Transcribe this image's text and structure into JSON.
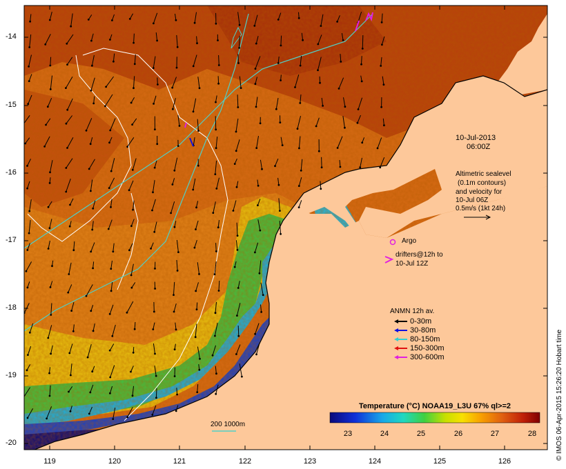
{
  "map": {
    "x_ticks": [
      "119",
      "120",
      "121",
      "122",
      "123",
      "124",
      "125",
      "126"
    ],
    "x_tick_values": [
      119,
      120,
      121,
      122,
      123,
      124,
      125,
      126
    ],
    "y_ticks": [
      "-14",
      "-15",
      "-16",
      "-17",
      "-18",
      "-19",
      "-20"
    ],
    "y_tick_values": [
      -14,
      -15,
      -16,
      -17,
      -18,
      -19,
      -20
    ],
    "colors": {
      "land": "#fdc89a",
      "warm": "#c04010",
      "cool": "#1f4fcf",
      "contour": "#ffffff",
      "isobath": "#4fd0c8",
      "argo": "#e020e0"
    }
  },
  "annotations": {
    "date_line1": "10-Jul-2013",
    "date_line2": "06:00Z",
    "alt_line1": "Altimetric sealevel",
    "alt_line2": "(0.1m contours)",
    "alt_line3": "and velocity for",
    "alt_line4": "10-Jul 06Z",
    "alt_line5": "0.5m/s (1kt 24h)",
    "argo_label": "Argo",
    "drifters_line1": "drifters@12h to",
    "drifters_line2": "10-Jul 12Z",
    "isobath_label": "200  1000m",
    "credit": "© IMOS 06-Apr-2015 15:26:20 Hobart time"
  },
  "legend": {
    "title": "ANMN 12h av.",
    "items": [
      {
        "label": "0-30m",
        "color": "#000000"
      },
      {
        "label": "30-80m",
        "color": "#1010e0"
      },
      {
        "label": "80-150m",
        "color": "#30d0d0"
      },
      {
        "label": "150-300m",
        "color": "#e01010"
      },
      {
        "label": "300-600m",
        "color": "#e020e0"
      }
    ]
  },
  "colorbar": {
    "title": "Temperature (°C) NOAA19_L3U 67% ql>=2",
    "ticks": [
      "23",
      "24",
      "25",
      "26",
      "27",
      "28"
    ],
    "tick_values": [
      23,
      24,
      25,
      26,
      27,
      28
    ],
    "range": [
      22.5,
      28.2
    ]
  }
}
